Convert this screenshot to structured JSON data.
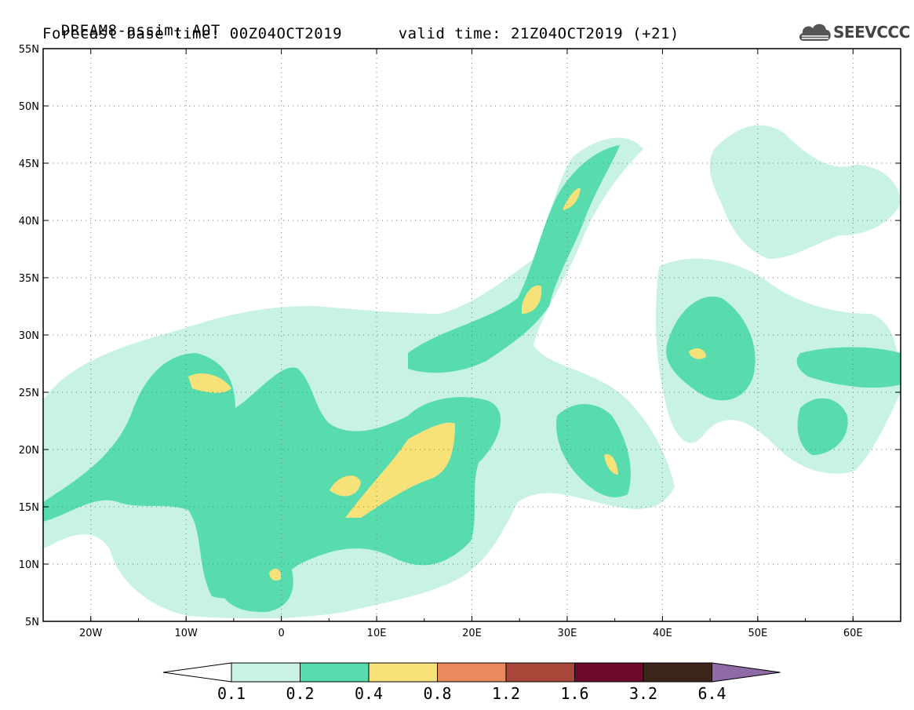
{
  "header": {
    "line1": "DREAM8-assim: AOT",
    "line2_left": "Forecast base time: 00Z04OCT2019",
    "line2_right": "valid time: 21Z04OCT2019 (+21)"
  },
  "logo": {
    "text": "SEEVCCC",
    "icon": "cloud-logo-icon"
  },
  "map": {
    "lon_range": [
      -25,
      65
    ],
    "lat_range": [
      5,
      55
    ],
    "lat_ticks": [
      "5N",
      "10N",
      "15N",
      "20N",
      "25N",
      "30N",
      "35N",
      "40N",
      "45N",
      "50N",
      "55N"
    ],
    "lon_ticks": [
      "20W",
      "10W",
      "0",
      "10E",
      "20E",
      "30E",
      "40E",
      "50E",
      "60E"
    ],
    "gridlines": "dotted"
  },
  "colorbar": {
    "labels": [
      "0.1",
      "0.2",
      "0.4",
      "0.8",
      "1.2",
      "1.6",
      "3.2",
      "6.4"
    ],
    "colors": [
      "#ffffff",
      "#c8f2e6",
      "#58dcae",
      "#f7e27a",
      "#e8895e",
      "#a6473a",
      "#6d0a2a",
      "#3b2418",
      "#8f6aa6"
    ]
  }
}
